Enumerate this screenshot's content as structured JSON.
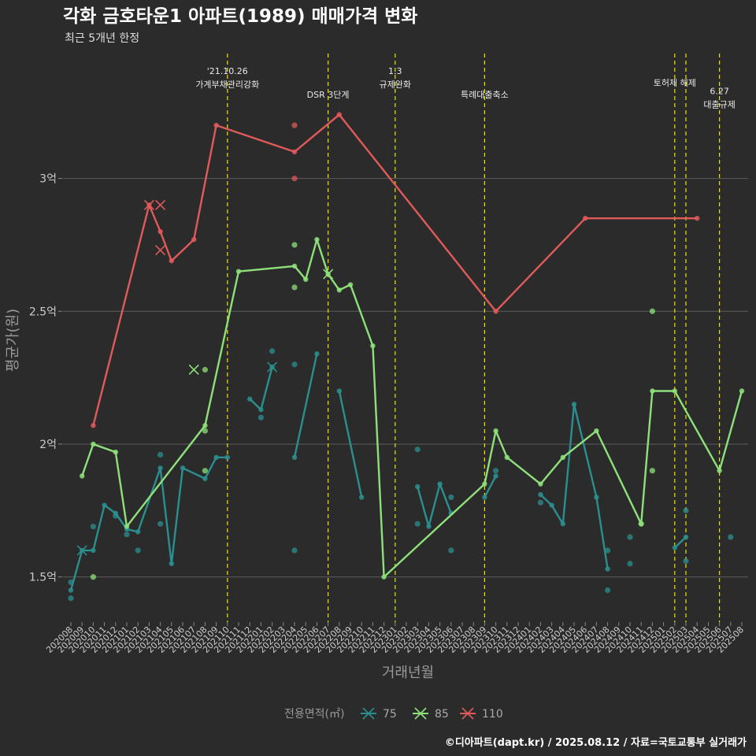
{
  "title": "각화 금호타운1 아파트(1989) 매매가격 변화",
  "subtitle": "최근 5개년 한정",
  "caption": "©디아파트(dapt.kr) / 2025.08.12 / 자료=국토교통부 실거래가",
  "colors": {
    "background": "#2b2b2b",
    "grid": "#5c5c5c",
    "event_line": "#e6e600",
    "75": "#2b8f8f",
    "85": "#8ee07a",
    "110": "#e05a5a"
  },
  "chart_data": {
    "type": "line",
    "xlabel": "거래년월",
    "ylabel": "평균가(원)",
    "x": [
      "202008",
      "202009",
      "202010",
      "202011",
      "202012",
      "202101",
      "202102",
      "202103",
      "202104",
      "202105",
      "202106",
      "202107",
      "202108",
      "202109",
      "202110",
      "202111",
      "202112",
      "202201",
      "202202",
      "202203",
      "202204",
      "202205",
      "202206",
      "202207",
      "202208",
      "202209",
      "202210",
      "202211",
      "202212",
      "202301",
      "202302",
      "202303",
      "202304",
      "202305",
      "202306",
      "202307",
      "202308",
      "202309",
      "202310",
      "202311",
      "202312",
      "202401",
      "202402",
      "202403",
      "202404",
      "202405",
      "202406",
      "202407",
      "202408",
      "202409",
      "202410",
      "202411",
      "202412",
      "202501",
      "202502",
      "202503",
      "202504",
      "202505",
      "202506",
      "202507",
      "202508"
    ],
    "yticks": [
      {
        "v": 1.5,
        "label": "1.5억"
      },
      {
        "v": 2.0,
        "label": "2억"
      },
      {
        "v": 2.5,
        "label": "2.5억"
      },
      {
        "v": 3.0,
        "label": "3억"
      }
    ],
    "ylim": [
      1.33,
      3.47
    ],
    "grid": true,
    "legend_title": "전용면적(㎡)",
    "legend_position": "bottom",
    "series": [
      {
        "name": "75",
        "color_key": "75",
        "segments": [
          [
            [
              "202008",
              1.45
            ],
            [
              "202009",
              1.6
            ],
            [
              "202010",
              1.6
            ],
            [
              "202011",
              1.77
            ],
            [
              "202012",
              1.74
            ],
            [
              "202101",
              1.68
            ],
            [
              "202102",
              1.67
            ],
            [
              "202104",
              1.91
            ],
            [
              "202105",
              1.55
            ],
            [
              "202106",
              1.91
            ],
            [
              "202108",
              1.87
            ],
            [
              "202109",
              1.95
            ],
            [
              "202110",
              1.95
            ]
          ],
          [
            [
              "202112",
              2.17
            ],
            [
              "202201",
              2.13
            ],
            [
              "202202",
              2.29
            ]
          ],
          [
            [
              "202204",
              1.95
            ],
            [
              "202206",
              2.34
            ]
          ],
          [
            [
              "202208",
              2.2
            ],
            [
              "202210",
              1.8
            ]
          ],
          [
            [
              "202303",
              1.84
            ],
            [
              "202304",
              1.69
            ],
            [
              "202305",
              1.85
            ],
            [
              "202306",
              1.74
            ]
          ],
          [
            [
              "202309",
              1.8
            ],
            [
              "202310",
              1.88
            ]
          ],
          [
            [
              "202402",
              1.81
            ],
            [
              "202403",
              1.77
            ],
            [
              "202404",
              1.7
            ],
            [
              "202405",
              2.15
            ],
            [
              "202407",
              1.8
            ],
            [
              "202408",
              1.53
            ]
          ],
          [
            [
              "202502",
              1.61
            ],
            [
              "202503",
              1.65
            ]
          ]
        ],
        "points": [
          [
            "202008",
            1.48
          ],
          [
            "202008",
            1.42
          ],
          [
            "202010",
            1.69
          ],
          [
            "202012",
            1.73
          ],
          [
            "202101",
            1.66
          ],
          [
            "202102",
            1.6
          ],
          [
            "202104",
            1.96
          ],
          [
            "202104",
            1.7
          ],
          [
            "202201",
            2.1
          ],
          [
            "202202",
            2.35
          ],
          [
            "202204",
            2.3
          ],
          [
            "202204",
            1.6
          ],
          [
            "202303",
            1.98
          ],
          [
            "202303",
            1.7
          ],
          [
            "202306",
            1.8
          ],
          [
            "202306",
            1.6
          ],
          [
            "202310",
            1.9
          ],
          [
            "202402",
            1.78
          ],
          [
            "202408",
            1.6
          ],
          [
            "202408",
            1.45
          ],
          [
            "202410",
            1.65
          ],
          [
            "202410",
            1.55
          ],
          [
            "202503",
            1.75
          ],
          [
            "202503",
            1.56
          ],
          [
            "202507",
            1.65
          ]
        ],
        "crosses": [
          [
            "202009",
            1.6
          ],
          [
            "202202",
            2.29
          ]
        ]
      },
      {
        "name": "85",
        "color_key": "85",
        "segments": [
          [
            [
              "202009",
              1.88
            ],
            [
              "202010",
              2.0
            ],
            [
              "202012",
              1.97
            ],
            [
              "202101",
              1.69
            ],
            [
              "202108",
              2.07
            ],
            [
              "202111",
              2.65
            ],
            [
              "202204",
              2.67
            ],
            [
              "202205",
              2.62
            ],
            [
              "202206",
              2.77
            ],
            [
              "202207",
              2.64
            ],
            [
              "202208",
              2.58
            ],
            [
              "202209",
              2.6
            ],
            [
              "202211",
              2.37
            ],
            [
              "202212",
              1.5
            ],
            [
              "202309",
              1.85
            ],
            [
              "202310",
              2.05
            ],
            [
              "202311",
              1.95
            ],
            [
              "202402",
              1.85
            ],
            [
              "202404",
              1.95
            ],
            [
              "202407",
              2.05
            ],
            [
              "202411",
              1.7
            ],
            [
              "202412",
              2.2
            ],
            [
              "202502",
              2.2
            ],
            [
              "202506",
              1.9
            ],
            [
              "202508",
              2.2
            ]
          ]
        ],
        "points": [
          [
            "202010",
            1.5
          ],
          [
            "202108",
            2.28
          ],
          [
            "202108",
            2.05
          ],
          [
            "202108",
            1.9
          ],
          [
            "202204",
            2.75
          ],
          [
            "202204",
            2.59
          ],
          [
            "202411",
            1.7
          ],
          [
            "202412",
            2.5
          ],
          [
            "202412",
            1.9
          ]
        ],
        "crosses": [
          [
            "202107",
            2.28
          ],
          [
            "202207",
            2.64
          ]
        ]
      },
      {
        "name": "110",
        "color_key": "110",
        "segments": [
          [
            [
              "202010",
              2.07
            ],
            [
              "202103",
              2.9
            ],
            [
              "202104",
              2.8
            ],
            [
              "202105",
              2.69
            ],
            [
              "202107",
              2.77
            ],
            [
              "202109",
              3.2
            ],
            [
              "202204",
              3.1
            ],
            [
              "202208",
              3.24
            ],
            [
              "202310",
              2.5
            ],
            [
              "202406",
              2.85
            ],
            [
              "202504",
              2.85
            ]
          ]
        ],
        "points": [
          [
            "202204",
            3.2
          ],
          [
            "202204",
            3.0
          ]
        ],
        "crosses": [
          [
            "202103",
            2.9
          ],
          [
            "202104",
            2.9
          ],
          [
            "202104",
            2.73
          ]
        ]
      }
    ],
    "events": [
      {
        "x": "202110",
        "label_lines": [
          "'21.10.26",
          "가계부채관리강화"
        ],
        "tier": 0
      },
      {
        "x": "202207",
        "label_lines": [
          "DSR 3단계"
        ],
        "tier": 2
      },
      {
        "x": "202301",
        "label_lines": [
          "1.3",
          "규제완화"
        ],
        "tier": 0
      },
      {
        "x": "202309",
        "label_lines": [
          "특례대출축소"
        ],
        "tier": 2
      },
      {
        "x": "202502",
        "label_lines": [
          "토허제 해제"
        ],
        "tier": 1
      },
      {
        "x": "202503",
        "label_lines": [],
        "tier": 1
      },
      {
        "x": "202506",
        "label_lines": [
          "6.27",
          "대출규제"
        ],
        "tier": 1.7
      }
    ]
  }
}
